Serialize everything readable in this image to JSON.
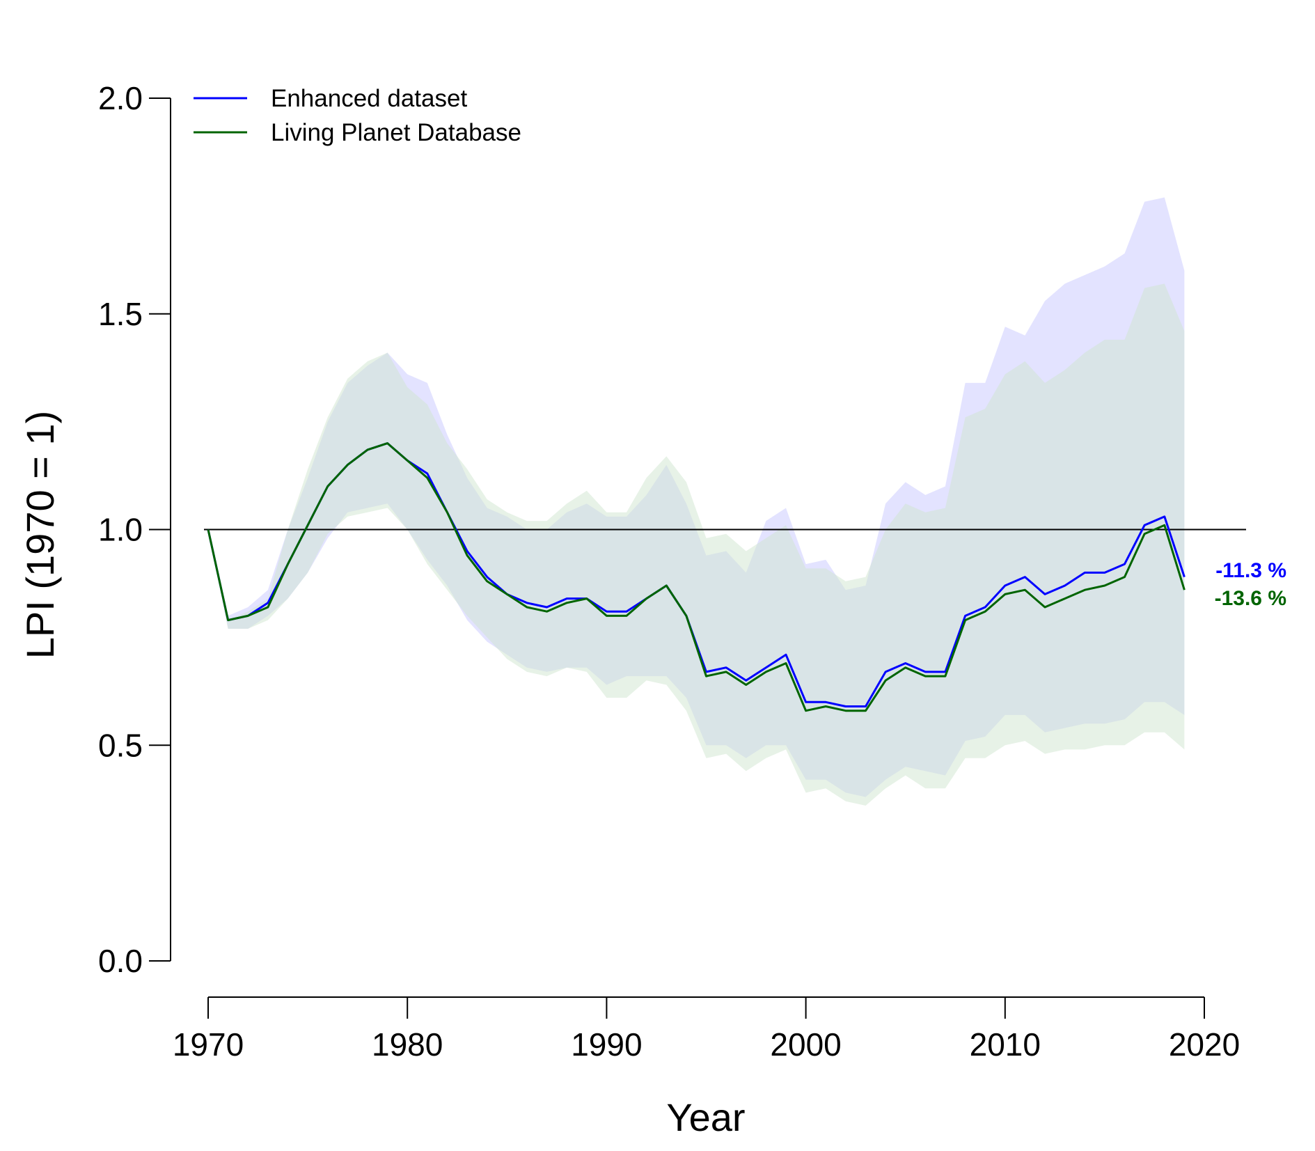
{
  "chart_data": {
    "type": "line",
    "xlabel": "Year",
    "ylabel": "LPI (1970 = 1)",
    "xlim": [
      1970,
      2020
    ],
    "ylim": [
      0,
      2
    ],
    "x_ticks": [
      "1970",
      "1980",
      "1990",
      "2000",
      "2010",
      "2020"
    ],
    "y_ticks": [
      "0.0",
      "0.5",
      "1.0",
      "1.5",
      "2.0"
    ],
    "reference_line": 1.0,
    "legend_position": "top-left",
    "x": [
      1970,
      1971,
      1972,
      1973,
      1974,
      1975,
      1976,
      1977,
      1978,
      1979,
      1980,
      1981,
      1982,
      1983,
      1984,
      1985,
      1986,
      1987,
      1988,
      1989,
      1990,
      1991,
      1992,
      1993,
      1994,
      1995,
      1996,
      1997,
      1998,
      1999,
      2000,
      2001,
      2002,
      2003,
      2004,
      2005,
      2006,
      2007,
      2008,
      2009,
      2010,
      2011,
      2012,
      2013,
      2014,
      2015,
      2016,
      2017,
      2018,
      2019
    ],
    "series": [
      {
        "name": "Enhanced dataset",
        "color": "#0000ff",
        "band_color": "#c8c8ff",
        "end_label": "-11.3 %",
        "values": [
          1.0,
          0.79,
          0.8,
          0.83,
          0.92,
          1.01,
          1.1,
          1.15,
          1.185,
          1.2,
          1.16,
          1.13,
          1.04,
          0.95,
          0.89,
          0.85,
          0.83,
          0.82,
          0.84,
          0.84,
          0.81,
          0.81,
          0.84,
          0.87,
          0.8,
          0.67,
          0.68,
          0.65,
          0.68,
          0.71,
          0.6,
          0.6,
          0.59,
          0.59,
          0.67,
          0.69,
          0.67,
          0.67,
          0.8,
          0.82,
          0.87,
          0.89,
          0.85,
          0.87,
          0.9,
          0.9,
          0.92,
          1.01,
          1.03,
          0.89
        ],
        "upper": [
          1.0,
          0.8,
          0.82,
          0.86,
          1.0,
          1.12,
          1.25,
          1.34,
          1.38,
          1.41,
          1.36,
          1.34,
          1.22,
          1.12,
          1.05,
          1.03,
          1.0,
          1.0,
          1.04,
          1.06,
          1.03,
          1.03,
          1.08,
          1.15,
          1.06,
          0.94,
          0.95,
          0.9,
          1.02,
          1.05,
          0.92,
          0.93,
          0.86,
          0.87,
          1.06,
          1.11,
          1.08,
          1.1,
          1.34,
          1.34,
          1.47,
          1.45,
          1.53,
          1.57,
          1.59,
          1.61,
          1.64,
          1.76,
          1.77,
          1.6
        ],
        "lower": [
          1.0,
          0.77,
          0.77,
          0.8,
          0.84,
          0.9,
          0.98,
          1.04,
          1.05,
          1.06,
          1.0,
          0.93,
          0.87,
          0.79,
          0.74,
          0.71,
          0.68,
          0.67,
          0.68,
          0.68,
          0.64,
          0.66,
          0.66,
          0.66,
          0.61,
          0.5,
          0.5,
          0.47,
          0.5,
          0.5,
          0.42,
          0.42,
          0.39,
          0.38,
          0.42,
          0.45,
          0.44,
          0.43,
          0.51,
          0.52,
          0.57,
          0.57,
          0.53,
          0.54,
          0.55,
          0.55,
          0.56,
          0.6,
          0.6,
          0.57
        ]
      },
      {
        "name": "Living Planet Database",
        "color": "#006400",
        "band_color": "#cfe6cf",
        "end_label": "-13.6 %",
        "values": [
          1.0,
          0.79,
          0.8,
          0.82,
          0.92,
          1.01,
          1.1,
          1.15,
          1.185,
          1.2,
          1.16,
          1.12,
          1.04,
          0.94,
          0.88,
          0.85,
          0.82,
          0.81,
          0.83,
          0.84,
          0.8,
          0.8,
          0.84,
          0.87,
          0.8,
          0.66,
          0.67,
          0.64,
          0.67,
          0.69,
          0.58,
          0.59,
          0.58,
          0.58,
          0.65,
          0.68,
          0.66,
          0.66,
          0.79,
          0.81,
          0.85,
          0.86,
          0.82,
          0.84,
          0.86,
          0.87,
          0.89,
          0.99,
          1.01,
          0.86
        ],
        "upper": [
          1.0,
          0.79,
          0.81,
          0.84,
          1.0,
          1.14,
          1.26,
          1.35,
          1.39,
          1.41,
          1.33,
          1.29,
          1.2,
          1.14,
          1.07,
          1.04,
          1.02,
          1.02,
          1.06,
          1.09,
          1.04,
          1.04,
          1.12,
          1.17,
          1.11,
          0.98,
          0.99,
          0.95,
          0.98,
          1.01,
          0.91,
          0.91,
          0.88,
          0.89,
          1.0,
          1.06,
          1.04,
          1.05,
          1.26,
          1.28,
          1.36,
          1.39,
          1.34,
          1.37,
          1.41,
          1.44,
          1.44,
          1.56,
          1.57,
          1.46
        ],
        "lower": [
          1.0,
          0.77,
          0.77,
          0.79,
          0.84,
          0.9,
          0.99,
          1.03,
          1.04,
          1.05,
          1.0,
          0.92,
          0.86,
          0.8,
          0.75,
          0.7,
          0.67,
          0.66,
          0.68,
          0.67,
          0.61,
          0.61,
          0.65,
          0.64,
          0.58,
          0.47,
          0.48,
          0.44,
          0.47,
          0.49,
          0.39,
          0.4,
          0.37,
          0.36,
          0.4,
          0.43,
          0.4,
          0.4,
          0.47,
          0.47,
          0.5,
          0.51,
          0.48,
          0.49,
          0.49,
          0.5,
          0.5,
          0.53,
          0.53,
          0.49
        ]
      }
    ]
  }
}
